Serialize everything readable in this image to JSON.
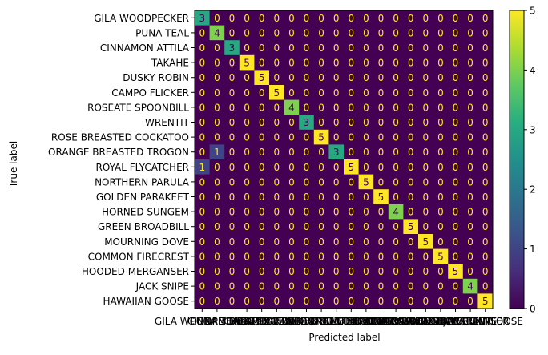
{
  "chart_data": {
    "type": "heatmap",
    "title": "",
    "xlabel": "Predicted label",
    "ylabel": "True label",
    "labels": [
      "GILA WOODPECKER",
      "PUNA TEAL",
      "CINNAMON ATTILA",
      "TAKAHE",
      "DUSKY ROBIN",
      "CAMPO FLICKER",
      "ROSEATE SPOONBILL",
      "WRENTIT",
      "ROSE BREASTED COCKATOO",
      "ORANGE BREASTED TROGON",
      "ROYAL FLYCATCHER",
      "NORTHERN PARULA",
      "GOLDEN PARAKEET",
      "HORNED SUNGEM",
      "GREEN BROADBILL",
      "MOURNING DOVE",
      "COMMON FIRECREST",
      "HOODED MERGANSER",
      "JACK SNIPE",
      "HAWAIIAN GOOSE"
    ],
    "matrix": [
      [
        3,
        0,
        0,
        0,
        0,
        0,
        0,
        0,
        0,
        0,
        0,
        0,
        0,
        0,
        0,
        0,
        0,
        0,
        0,
        0
      ],
      [
        0,
        4,
        0,
        0,
        0,
        0,
        0,
        0,
        0,
        0,
        0,
        0,
        0,
        0,
        0,
        0,
        0,
        0,
        0,
        0
      ],
      [
        0,
        0,
        3,
        0,
        0,
        0,
        0,
        0,
        0,
        0,
        0,
        0,
        0,
        0,
        0,
        0,
        0,
        0,
        0,
        0
      ],
      [
        0,
        0,
        0,
        5,
        0,
        0,
        0,
        0,
        0,
        0,
        0,
        0,
        0,
        0,
        0,
        0,
        0,
        0,
        0,
        0
      ],
      [
        0,
        0,
        0,
        0,
        5,
        0,
        0,
        0,
        0,
        0,
        0,
        0,
        0,
        0,
        0,
        0,
        0,
        0,
        0,
        0
      ],
      [
        0,
        0,
        0,
        0,
        0,
        5,
        0,
        0,
        0,
        0,
        0,
        0,
        0,
        0,
        0,
        0,
        0,
        0,
        0,
        0
      ],
      [
        0,
        0,
        0,
        0,
        0,
        0,
        4,
        0,
        0,
        0,
        0,
        0,
        0,
        0,
        0,
        0,
        0,
        0,
        0,
        0
      ],
      [
        0,
        0,
        0,
        0,
        0,
        0,
        0,
        3,
        0,
        0,
        0,
        0,
        0,
        0,
        0,
        0,
        0,
        0,
        0,
        0
      ],
      [
        0,
        0,
        0,
        0,
        0,
        0,
        0,
        0,
        5,
        0,
        0,
        0,
        0,
        0,
        0,
        0,
        0,
        0,
        0,
        0
      ],
      [
        0,
        1,
        0,
        0,
        0,
        0,
        0,
        0,
        0,
        3,
        0,
        0,
        0,
        0,
        0,
        0,
        0,
        0,
        0,
        0
      ],
      [
        1,
        0,
        0,
        0,
        0,
        0,
        0,
        0,
        0,
        0,
        5,
        0,
        0,
        0,
        0,
        0,
        0,
        0,
        0,
        0
      ],
      [
        0,
        0,
        0,
        0,
        0,
        0,
        0,
        0,
        0,
        0,
        0,
        5,
        0,
        0,
        0,
        0,
        0,
        0,
        0,
        0
      ],
      [
        0,
        0,
        0,
        0,
        0,
        0,
        0,
        0,
        0,
        0,
        0,
        0,
        5,
        0,
        0,
        0,
        0,
        0,
        0,
        0
      ],
      [
        0,
        0,
        0,
        0,
        0,
        0,
        0,
        0,
        0,
        0,
        0,
        0,
        0,
        4,
        0,
        0,
        0,
        0,
        0,
        0
      ],
      [
        0,
        0,
        0,
        0,
        0,
        0,
        0,
        0,
        0,
        0,
        0,
        0,
        0,
        0,
        5,
        0,
        0,
        0,
        0,
        0
      ],
      [
        0,
        0,
        0,
        0,
        0,
        0,
        0,
        0,
        0,
        0,
        0,
        0,
        0,
        0,
        0,
        5,
        0,
        0,
        0,
        0
      ],
      [
        0,
        0,
        0,
        0,
        0,
        0,
        0,
        0,
        0,
        0,
        0,
        0,
        0,
        0,
        0,
        0,
        5,
        0,
        0,
        0
      ],
      [
        0,
        0,
        0,
        0,
        0,
        0,
        0,
        0,
        0,
        0,
        0,
        0,
        0,
        0,
        0,
        0,
        0,
        5,
        0,
        0
      ],
      [
        0,
        0,
        0,
        0,
        0,
        0,
        0,
        0,
        0,
        0,
        0,
        0,
        0,
        0,
        0,
        0,
        0,
        0,
        4,
        0
      ],
      [
        0,
        0,
        0,
        0,
        0,
        0,
        0,
        0,
        0,
        0,
        0,
        0,
        0,
        0,
        0,
        0,
        0,
        0,
        0,
        5
      ]
    ],
    "colorbar": {
      "min": 0,
      "max": 5,
      "ticks": [
        0,
        1,
        2,
        3,
        4,
        5
      ]
    },
    "colormap": "viridis",
    "grid": false
  }
}
